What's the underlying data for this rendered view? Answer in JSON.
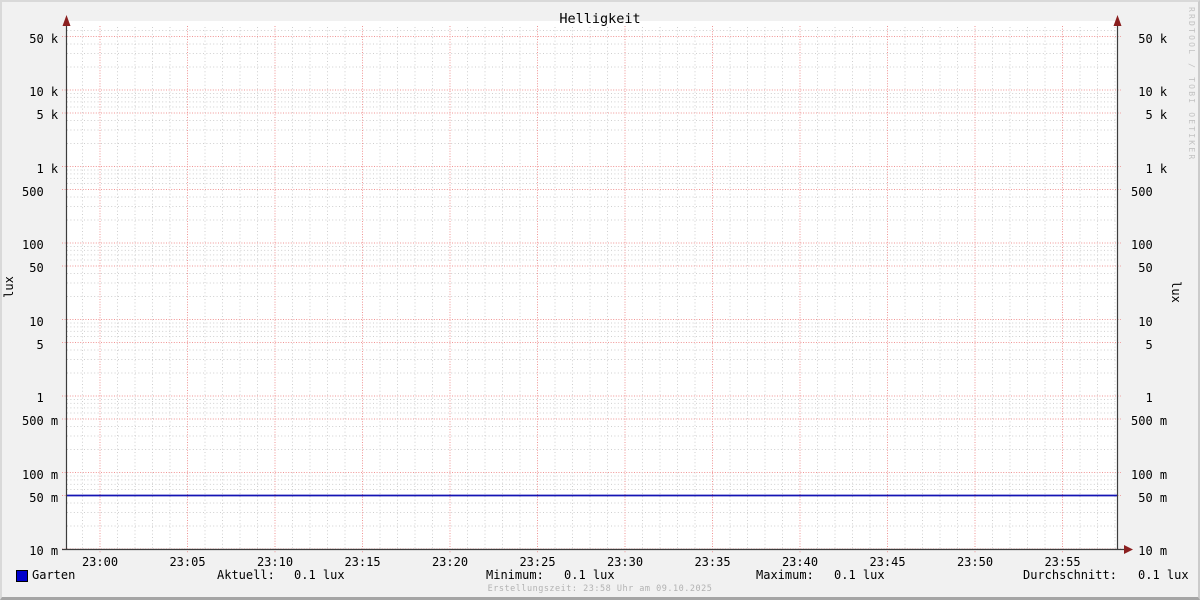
{
  "title": "Helligkeit",
  "watermark": "RRDTOOL / TOBI OETIKER",
  "y_axis": {
    "unit_label": "lux",
    "ticks": [
      {
        "value": 50000,
        "label": " 50 k"
      },
      {
        "value": 10000,
        "label": " 10 k"
      },
      {
        "value": 5000,
        "label": "  5 k"
      },
      {
        "value": 1000,
        "label": "  1 k"
      },
      {
        "value": 500,
        "label": "500  "
      },
      {
        "value": 100,
        "label": "100  "
      },
      {
        "value": 50,
        "label": " 50  "
      },
      {
        "value": 10,
        "label": " 10  "
      },
      {
        "value": 5,
        "label": "  5  "
      },
      {
        "value": 1,
        "label": "  1  "
      },
      {
        "value": 0.5,
        "label": "500 m"
      },
      {
        "value": 0.1,
        "label": "100 m"
      },
      {
        "value": 0.05,
        "label": " 50 m"
      },
      {
        "value": 0.01,
        "label": " 10 m"
      }
    ]
  },
  "x_axis": {
    "tick_labels": [
      "23:00",
      "23:05",
      "23:10",
      "23:15",
      "23:20",
      "23:25",
      "23:30",
      "23:35",
      "23:40",
      "23:45",
      "23:50",
      "23:55"
    ]
  },
  "chart_data": {
    "type": "line",
    "title": "Helligkeit",
    "ylabel": "lux",
    "y_scale": "log",
    "ylim": [
      0.01,
      68000
    ],
    "x_range_time": [
      "22:58",
      "23:58"
    ],
    "x_major_interval_minutes": 5,
    "x_minor_interval_minutes": 1,
    "grid": "on",
    "series": [
      {
        "name": "Garten",
        "color": "#0000cc",
        "shape": "constant-horizontal-line",
        "value": 0.05,
        "displayed_value": "0.1 lux"
      }
    ]
  },
  "legend": {
    "series_label": "Garten",
    "stats": [
      {
        "label": "Aktuell:",
        "value": "0.1 lux"
      },
      {
        "label": "Minimum:",
        "value": "0.1 lux"
      },
      {
        "label": "Maximum:",
        "value": "0.1 lux"
      },
      {
        "label": "Durchschnitt:",
        "value": "0.1 lux"
      }
    ]
  },
  "footer": {
    "creation": "Erstellungszeit: 23:58 Uhr am 09.10.2025"
  },
  "colors": {
    "background": "#f1f1f1",
    "plot_background": "#ffffff",
    "major_grid": "#f09494",
    "minor_grid": "#cfcfcf",
    "axis": "#3d3d3d",
    "arrow": "#8b2020",
    "series_line": "#1414b4",
    "legend_swatch": "#0000cc"
  }
}
